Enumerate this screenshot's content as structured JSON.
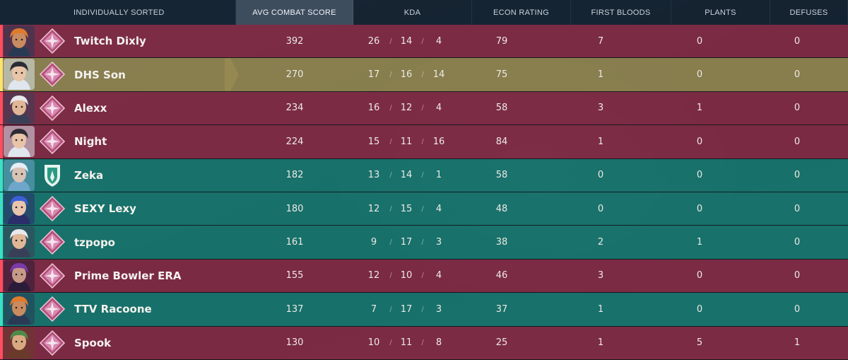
{
  "header": {
    "name": "INDIVIDUALLY SORTED",
    "acs": "AVG COMBAT SCORE",
    "kda": "KDA",
    "econ": "ECON RATING",
    "fb": "FIRST BLOODS",
    "plants": "PLANTS",
    "defuses": "DEFUSES"
  },
  "kda_separator": "/",
  "players": [
    {
      "name": "Twitch Dixly",
      "team": "red",
      "agent_icon": "agent-orange-hair-icon",
      "rank_icon": "rank-diamond-icon",
      "acs": "392",
      "k": "26",
      "d": "14",
      "a": "4",
      "econ": "79",
      "fb": "7",
      "plants": "0",
      "defuses": "0"
    },
    {
      "name": "DHS Son",
      "team": "gold",
      "agent_icon": "agent-headband-icon",
      "rank_icon": "rank-diamond-icon",
      "acs": "270",
      "k": "17",
      "d": "16",
      "a": "14",
      "econ": "75",
      "fb": "1",
      "plants": "0",
      "defuses": "0"
    },
    {
      "name": "Alexx",
      "team": "red",
      "agent_icon": "agent-hat-icon",
      "rank_icon": "rank-diamond-icon",
      "acs": "234",
      "k": "16",
      "d": "12",
      "a": "4",
      "econ": "58",
      "fb": "3",
      "plants": "1",
      "defuses": "0"
    },
    {
      "name": "Night",
      "team": "red",
      "agent_icon": "agent-headband-icon",
      "rank_icon": "rank-diamond-icon",
      "acs": "224",
      "k": "15",
      "d": "11",
      "a": "16",
      "econ": "84",
      "fb": "1",
      "plants": "0",
      "defuses": "0"
    },
    {
      "name": "Zeka",
      "team": "teal",
      "agent_icon": "agent-white-hair-icon",
      "rank_icon": "rank-platinum-icon",
      "acs": "182",
      "k": "13",
      "d": "14",
      "a": "1",
      "econ": "58",
      "fb": "0",
      "plants": "0",
      "defuses": "0"
    },
    {
      "name": "SEXY Lexy",
      "team": "teal",
      "agent_icon": "agent-blue-hair-icon",
      "rank_icon": "rank-diamond-icon",
      "acs": "180",
      "k": "12",
      "d": "15",
      "a": "4",
      "econ": "48",
      "fb": "0",
      "plants": "0",
      "defuses": "0"
    },
    {
      "name": "tzpopo",
      "team": "teal",
      "agent_icon": "agent-hat-icon",
      "rank_icon": "rank-diamond-icon",
      "acs": "161",
      "k": "9",
      "d": "17",
      "a": "3",
      "econ": "38",
      "fb": "2",
      "plants": "1",
      "defuses": "0"
    },
    {
      "name": "Prime Bowler ERA",
      "team": "red",
      "agent_icon": "agent-purple-hair-icon",
      "rank_icon": "rank-diamond-icon",
      "acs": "155",
      "k": "12",
      "d": "10",
      "a": "4",
      "econ": "46",
      "fb": "3",
      "plants": "0",
      "defuses": "0"
    },
    {
      "name": "TTV Racoone",
      "team": "teal",
      "agent_icon": "agent-orange-hair-icon",
      "rank_icon": "rank-diamond-icon",
      "acs": "137",
      "k": "7",
      "d": "17",
      "a": "3",
      "econ": "37",
      "fb": "1",
      "plants": "0",
      "defuses": "0"
    },
    {
      "name": "Spook",
      "team": "red",
      "agent_icon": "agent-green-bandana-icon",
      "rank_icon": "rank-diamond-icon",
      "acs": "130",
      "k": "10",
      "d": "11",
      "a": "8",
      "econ": "25",
      "fb": "1",
      "plants": "5",
      "defuses": "1"
    }
  ],
  "colors": {
    "red_team": "#8e2c48",
    "teal_team": "#188076",
    "selected": "#968a52",
    "header_active": "#3e4d5e"
  }
}
